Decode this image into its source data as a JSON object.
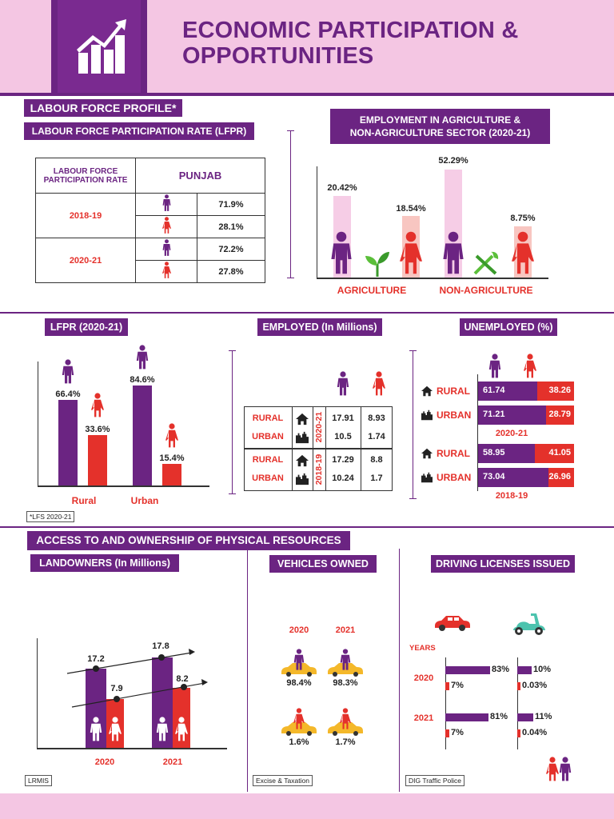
{
  "header": {
    "title_line1": "ECONOMIC PARTICIPATION &",
    "title_line2": "OPPORTUNITIES"
  },
  "labour": {
    "section_title": "LABOUR FORCE PROFILE*",
    "lfpr_title": "LABOUR FORCE PARTICIPATION RATE (LFPR)",
    "table_head": "LABOUR FORCE PARTICIPATION RATE",
    "table_col": "PUNJAB",
    "rows": [
      {
        "year": "2018-19",
        "male": "71.9%",
        "female": "28.1%"
      },
      {
        "year": "2020-21",
        "male": "72.2%",
        "female": "27.8%"
      }
    ]
  },
  "employment": {
    "title_line1": "EMPLOYMENT IN AGRICULTURE &",
    "title_line2": "NON-AGRICULTURE SECTOR (2020-21)",
    "labels": [
      "AGRICULTURE",
      "NON-AGRICULTURE"
    ],
    "values": [
      "20.42%",
      "18.54%",
      "52.29%",
      "8.75%"
    ]
  },
  "lfpr2021": {
    "title": "LFPR (2020-21)",
    "categories": [
      "Rural",
      "Urban"
    ],
    "male": [
      "66.4%",
      "84.6%"
    ],
    "female": [
      "33.6%",
      "15.4%"
    ],
    "source": "*LFS 2020-21"
  },
  "employed": {
    "title": "EMPLOYED (In Millions)",
    "rows": [
      {
        "area": "RURAL",
        "m": "17.91",
        "f": "8.93"
      },
      {
        "area": "URBAN",
        "m": "10.5",
        "f": "1.74"
      },
      {
        "area": "RURAL",
        "m": "17.29",
        "f": "8.8"
      },
      {
        "area": "URBAN",
        "m": "10.24",
        "f": "1.7"
      }
    ],
    "years": [
      "2020-21",
      "2018-19"
    ]
  },
  "unemployed": {
    "title": "UNEMPLOYED (%)",
    "rows": [
      {
        "area": "RURAL",
        "m": "61.74",
        "f": "38.26"
      },
      {
        "area": "URBAN",
        "m": "71.21",
        "f": "28.79"
      },
      {
        "area": "RURAL",
        "m": "58.95",
        "f": "41.05"
      },
      {
        "area": "URBAN",
        "m": "73.04",
        "f": "26.96"
      }
    ],
    "years": [
      "2020-21",
      "2018-19"
    ]
  },
  "resources": {
    "title": "ACCESS TO AND OWNERSHIP OF PHYSICAL RESOURCES",
    "landowners_title": "LANDOWNERS (In Millions)",
    "land_values": [
      "17.2",
      "7.9",
      "17.8",
      "8.2"
    ],
    "land_years": [
      "2020",
      "2021"
    ],
    "land_source": "LRMIS",
    "vehicles_title": "VEHICLES OWNED",
    "vehicle_years": [
      "2020",
      "2021"
    ],
    "vehicle_male": [
      "98.4%",
      "98.3%"
    ],
    "vehicle_female": [
      "1.6%",
      "1.7%"
    ],
    "vehicle_source": "Excise & Taxation",
    "licenses_title": "DRIVING LICENSES ISSUED",
    "years_label": "YEARS",
    "license_years": [
      "2020",
      "2021"
    ],
    "license_car": [
      "83%",
      "7%",
      "81%",
      "7%"
    ],
    "license_bike": [
      "10%",
      "0.03%",
      "11%",
      "0.04%"
    ],
    "license_source": "DIG Traffic Police"
  },
  "colors": {
    "purple": "#6b2482",
    "red": "#e4312b",
    "pink": "#f4c6e3",
    "lightpink": "#f6cde6",
    "salmon": "#f8c6c1"
  },
  "chart_data": [
    {
      "type": "table",
      "title": "LABOUR FORCE PARTICIPATION RATE (LFPR)",
      "columns": [
        "PUNJAB"
      ],
      "rows": [
        [
          "2018-19",
          "71.9%",
          "28.1%"
        ],
        [
          "2020-21",
          "72.2%",
          "27.8%"
        ]
      ]
    },
    {
      "type": "bar",
      "title": "EMPLOYMENT IN AGRICULTURE & NON-AGRICULTURE SECTOR (2020-21)",
      "categories": [
        "AGRICULTURE",
        "NON-AGRICULTURE"
      ],
      "series": [
        {
          "values": [
            20.42,
            52.29
          ]
        },
        {
          "values": [
            18.54,
            8.75
          ]
        }
      ]
    },
    {
      "type": "bar",
      "title": "LFPR (2020-21)",
      "categories": [
        "Rural",
        "Urban"
      ],
      "series": [
        {
          "values": [
            66.4,
            84.6
          ]
        },
        {
          "values": [
            33.6,
            15.4
          ]
        }
      ]
    },
    {
      "type": "bar",
      "title": "LANDOWNERS (In Millions)",
      "categories": [
        "2020",
        "2021"
      ],
      "series": [
        {
          "values": [
            17.2,
            17.8
          ]
        },
        {
          "values": [
            7.9,
            8.2
          ]
        }
      ]
    },
    {
      "type": "bar",
      "title": "UNEMPLOYED (%)",
      "categories": [
        "RURAL 2020-21",
        "URBAN 2020-21",
        "RURAL 2018-19",
        "URBAN 2018-19"
      ],
      "series": [
        {
          "values": [
            61.74,
            71.21,
            58.95,
            73.04
          ]
        },
        {
          "values": [
            38.26,
            28.79,
            41.05,
            26.96
          ]
        }
      ]
    },
    {
      "type": "bar",
      "title": "DRIVING LICENSES ISSUED",
      "categories": [
        "2020",
        "2021"
      ],
      "series": [
        {
          "values": [
            83,
            81
          ]
        },
        {
          "values": [
            7,
            7
          ]
        },
        {
          "values": [
            10,
            11
          ]
        },
        {
          "values": [
            0.03,
            0.04
          ]
        }
      ]
    }
  ]
}
